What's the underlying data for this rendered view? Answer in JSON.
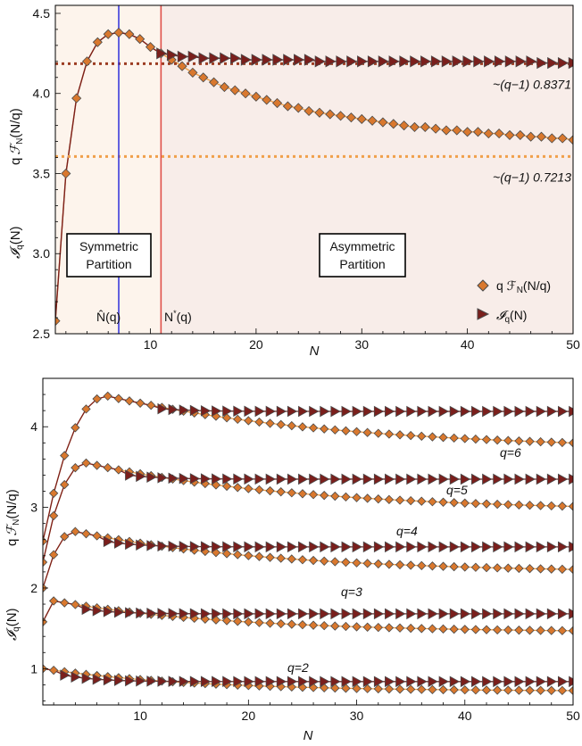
{
  "colors": {
    "diamond_fill": "#d9782e",
    "triangle_fill": "#7a1f1c",
    "marker_stroke": "#4a4a4a",
    "curve_orange": "#f0a04b",
    "curve_dark": "#7a1f1c",
    "vline_blue": "#3b3bdc",
    "vline_red": "#e0504a",
    "region_symmetric": "#fdf4ec",
    "region_asymmetric": "#f8ede9",
    "dotted_dark": "#9c3c22",
    "dotted_orange": "#f0a04b"
  },
  "top_panel": {
    "xlabel": "N",
    "ylabel_part1": "q",
    "ylabel_part2": "ℱ",
    "ylabel_sub": "N",
    "ylabel_part3": "(N/q)",
    "ylabel_lower_main": "𝓘",
    "ylabel_lower_sub": "q",
    "ylabel_lower_rest": "(N)",
    "xticks": [
      "10",
      "20",
      "30",
      "40",
      "50"
    ],
    "yticks": [
      "2.5",
      "3.0",
      "3.5",
      "4.0",
      "4.5"
    ],
    "annotation_upper": "~(q−1) 0.8371",
    "annotation_lower": "~(q−1) 0.7213",
    "box_symmetric": [
      "Symmetric",
      "Partition"
    ],
    "box_asymmetric": [
      "Asymmetric",
      "Partition"
    ],
    "label_nhat": "N̂(q)",
    "label_nstar": "N",
    "label_nstar_sup": "*",
    "label_nstar_rest": "(q)",
    "legend_diamond_prefix": "q ℱ",
    "legend_diamond_sub": "N",
    "legend_diamond_rest": "(N/q)",
    "legend_triangle_main": "𝓘",
    "legend_triangle_sub": "q",
    "legend_triangle_rest": "(N)"
  },
  "bottom_panel": {
    "xlabel": "N",
    "xticks": [
      "10",
      "20",
      "30",
      "40",
      "50"
    ],
    "yticks": [
      "1",
      "2",
      "3",
      "4"
    ],
    "q_labels": [
      "q=6",
      "q=5",
      "q=4",
      "q=3",
      "q=2"
    ]
  },
  "chart_data": [
    {
      "type": "scatter",
      "title": "",
      "xlabel": "N",
      "ylabel": "q ℱ_N(N/q), 𝓘_q(N)",
      "xlim": [
        1,
        50
      ],
      "ylim": [
        2.5,
        4.55
      ],
      "q": 6,
      "series": [
        {
          "name": "q ℱ_N(N/q)",
          "marker": "diamond",
          "x_start": 1,
          "values": [
            2.58,
            3.5,
            3.97,
            4.2,
            4.32,
            4.37,
            4.38,
            4.37,
            4.34,
            4.29,
            4.25,
            4.21,
            4.17,
            4.13,
            4.1,
            4.07,
            4.04,
            4.02,
            4.0,
            3.98,
            3.96,
            3.94,
            3.92,
            3.91,
            3.89,
            3.88,
            3.87,
            3.86,
            3.85,
            3.84,
            3.83,
            3.82,
            3.81,
            3.8,
            3.79,
            3.79,
            3.78,
            3.77,
            3.77,
            3.76,
            3.76,
            3.75,
            3.75,
            3.74,
            3.74,
            3.73,
            3.73,
            3.72,
            3.72,
            3.71
          ]
        },
        {
          "name": "𝓘_q(N)",
          "marker": "triangle",
          "x_start": 1,
          "values": [
            2.58,
            3.5,
            3.97,
            4.2,
            4.32,
            4.37,
            4.38,
            4.37,
            4.34,
            4.29,
            4.25,
            4.24,
            4.23,
            4.23,
            4.22,
            4.22,
            4.22,
            4.22,
            4.21,
            4.21,
            4.21,
            4.21,
            4.21,
            4.21,
            4.21,
            4.2,
            4.2,
            4.2,
            4.2,
            4.2,
            4.2,
            4.2,
            4.2,
            4.2,
            4.2,
            4.2,
            4.2,
            4.2,
            4.2,
            4.2,
            4.2,
            4.2,
            4.2,
            4.2,
            4.2,
            4.2,
            4.19,
            4.19,
            4.19,
            4.19
          ]
        }
      ],
      "reference_lines": [
        {
          "label": "~(q−1) 0.8371",
          "y": 4.1855
        },
        {
          "label": "~(q−1) 0.7213",
          "y": 3.6065
        }
      ],
      "vertical_lines": [
        {
          "label": "N̂(q)",
          "x": 7
        },
        {
          "label": "N*(q)",
          "x": 11
        }
      ],
      "regions": [
        "Symmetric Partition",
        "Asymmetric Partition"
      ],
      "legend": "bottom-right"
    },
    {
      "type": "scatter",
      "title": "",
      "xlabel": "N",
      "ylabel": "q ℱ_N(N/q), 𝓘_q(N)",
      "xlim": [
        1,
        50
      ],
      "ylim": [
        0.55,
        4.6
      ],
      "curves": [
        {
          "q": 6,
          "peak_N": 7,
          "peak": 4.38,
          "sym_end": 11,
          "diamond_final": 3.71,
          "triangle_final": 4.19,
          "start": 2.58
        },
        {
          "q": 5,
          "peak_N": 5,
          "peak": 3.55,
          "sym_end": 8,
          "diamond_final": 2.95,
          "triangle_final": 3.35,
          "start": 2.32
        },
        {
          "q": 4,
          "peak_N": 4,
          "peak": 2.7,
          "sym_end": 6,
          "diamond_final": 2.19,
          "triangle_final": 2.51,
          "start": 2.0
        },
        {
          "q": 3,
          "peak_N": 2,
          "peak": 1.84,
          "sym_end": 4,
          "diamond_final": 1.45,
          "triangle_final": 1.68,
          "start": 1.58
        },
        {
          "q": 2,
          "peak_N": 1,
          "peak": 1.0,
          "sym_end": 2,
          "diamond_final": 0.72,
          "triangle_final": 0.84,
          "start": 1.0
        }
      ]
    }
  ]
}
